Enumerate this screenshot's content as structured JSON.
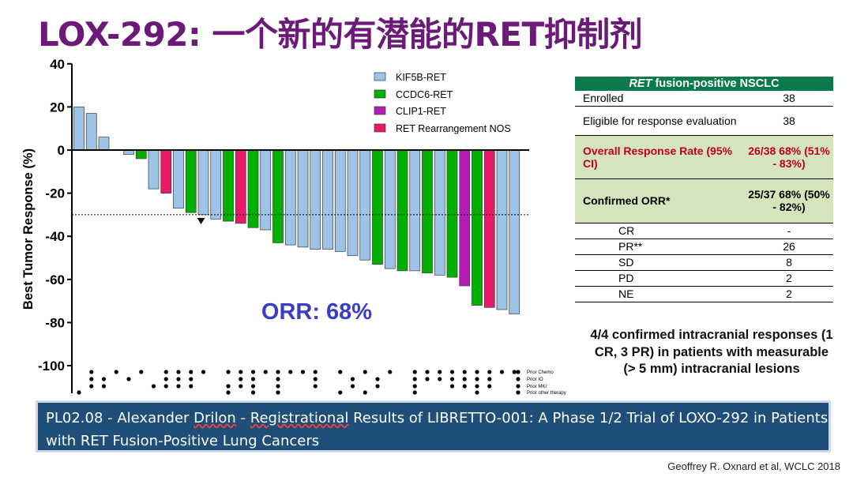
{
  "title": "LOX-292: 一个新的有潜能的RET抑制剂",
  "chart_data": {
    "type": "bar",
    "ylabel": "Best Tumor Response (%)",
    "ylim": [
      -110,
      40
    ],
    "yticks": [
      40,
      20,
      0,
      -20,
      -40,
      -60,
      -80,
      -100
    ],
    "reference_line": -30,
    "legend_position": "top-right",
    "series_colors": {
      "KIF5B-RET": "#9dc3e6",
      "CCDC6-RET": "#00b000",
      "CLIP1-RET": "#b31db3",
      "RET Rearrangement NOS": "#e6196b"
    },
    "legend": [
      "KIF5B-RET",
      "CCDC6-RET",
      "CLIP1-RET",
      "RET Rearrangement NOS"
    ],
    "bars": [
      {
        "value": 20,
        "fusion": "KIF5B-RET"
      },
      {
        "value": 17,
        "fusion": "KIF5B-RET"
      },
      {
        "value": 6,
        "fusion": "KIF5B-RET"
      },
      {
        "value": 0,
        "fusion": "KIF5B-RET"
      },
      {
        "value": -2,
        "fusion": "KIF5B-RET"
      },
      {
        "value": -4,
        "fusion": "CCDC6-RET"
      },
      {
        "value": -18,
        "fusion": "KIF5B-RET"
      },
      {
        "value": -20,
        "fusion": "RET Rearrangement NOS"
      },
      {
        "value": -27,
        "fusion": "KIF5B-RET"
      },
      {
        "value": -29,
        "fusion": "CCDC6-RET"
      },
      {
        "value": -30,
        "fusion": "KIF5B-RET"
      },
      {
        "value": -32,
        "fusion": "KIF5B-RET"
      },
      {
        "value": -33,
        "fusion": "CCDC6-RET"
      },
      {
        "value": -34,
        "fusion": "RET Rearrangement NOS"
      },
      {
        "value": -36,
        "fusion": "CCDC6-RET"
      },
      {
        "value": -37,
        "fusion": "KIF5B-RET"
      },
      {
        "value": -43,
        "fusion": "CCDC6-RET"
      },
      {
        "value": -44,
        "fusion": "KIF5B-RET"
      },
      {
        "value": -45,
        "fusion": "KIF5B-RET"
      },
      {
        "value": -46,
        "fusion": "KIF5B-RET"
      },
      {
        "value": -46,
        "fusion": "KIF5B-RET"
      },
      {
        "value": -47,
        "fusion": "KIF5B-RET"
      },
      {
        "value": -49,
        "fusion": "KIF5B-RET"
      },
      {
        "value": -51,
        "fusion": "KIF5B-RET"
      },
      {
        "value": -53,
        "fusion": "CCDC6-RET"
      },
      {
        "value": -55,
        "fusion": "KIF5B-RET"
      },
      {
        "value": -56,
        "fusion": "CCDC6-RET"
      },
      {
        "value": -56,
        "fusion": "KIF5B-RET"
      },
      {
        "value": -57,
        "fusion": "CCDC6-RET"
      },
      {
        "value": -58,
        "fusion": "KIF5B-RET"
      },
      {
        "value": -59,
        "fusion": "CCDC6-RET"
      },
      {
        "value": -63,
        "fusion": "CLIP1-RET"
      },
      {
        "value": -72,
        "fusion": "CCDC6-RET"
      },
      {
        "value": -73,
        "fusion": "RET Rearrangement NOS"
      },
      {
        "value": -74,
        "fusion": "KIF5B-RET"
      },
      {
        "value": -76,
        "fusion": "KIF5B-RET"
      }
    ],
    "marker_bar_index": 10,
    "annotation": "ORR: 68%",
    "prior_therapy_labels": [
      "Prior Chemo",
      "Prior IO",
      "Prior MKI",
      "Prior other therapy"
    ]
  },
  "table": {
    "header_italic": "RET",
    "header_rest": " fusion-positive NSCLC",
    "rows": [
      {
        "key": "Enrolled",
        "value": "38"
      },
      {
        "key": "Eligible for response evaluation",
        "value": "38"
      },
      {
        "key": "Overall Response Rate (95% CI)",
        "value": "26/38 68% (51% - 83%)"
      },
      {
        "key": "Confirmed ORR*",
        "value": "25/37 68% (50% - 82%)"
      },
      {
        "key": "CR",
        "value": "-"
      },
      {
        "key": "PR**",
        "value": "26"
      },
      {
        "key": "SD",
        "value": "8"
      },
      {
        "key": "PD",
        "value": "2"
      },
      {
        "key": "NE",
        "value": "2"
      }
    ]
  },
  "note": "4/4 confirmed intracranial responses (1 CR, 3 PR) in patients with measurable (> 5 mm) intracranial lesions",
  "banner": {
    "prefix": "PL02.08 - Alexander ",
    "name": "Drilon",
    "mid": " - ",
    "word": "Registrational",
    "rest": " Results of LIBRETTO-001: A Phase 1/2 Trial of LOXO-292 in Patients with RET Fusion-Positive Lung Cancers"
  },
  "credit": "Geoffrey R. Oxnard et al, WCLC 2018"
}
